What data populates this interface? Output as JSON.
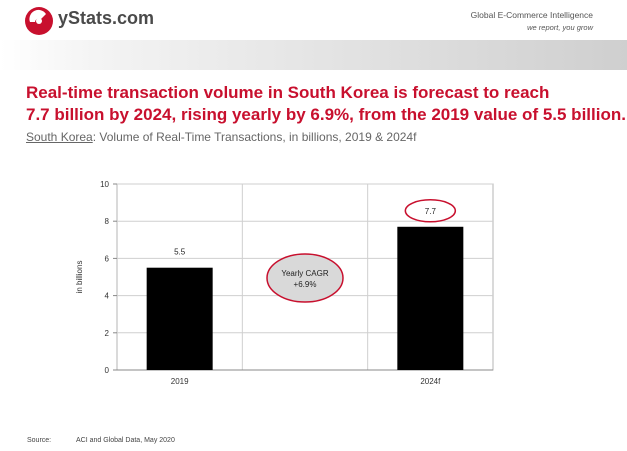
{
  "header": {
    "brand": "yStats.com",
    "tagline_line1": "Global E-Commerce Intelligence",
    "tagline_line2": "we report, you grow"
  },
  "headline": {
    "line1": "Real-time transaction volume in South Korea is forecast to reach",
    "line2": "7.7 billion by 2024, rising yearly by 6.9%, from the 2019 value of 5.5 billion."
  },
  "subtitle": {
    "country": "South Korea",
    "rest": ": Volume of Real-Time Transactions, in billions, 2019 & 2024f"
  },
  "chart_data": {
    "type": "bar",
    "categories": [
      "2019",
      "2024f"
    ],
    "values": [
      5.5,
      7.7
    ],
    "data_labels": [
      "5.5",
      "7.7"
    ],
    "ylabel": "in billions",
    "ylim": [
      0,
      10
    ],
    "yticks": [
      0,
      2,
      4,
      6,
      8,
      10
    ],
    "grid": true,
    "bar_color": "#000000",
    "highlight_color": "#c8102e",
    "annotation": {
      "line1": "Yearly CAGR",
      "line2": "+6.9%"
    }
  },
  "footer": {
    "source_label": "Source:",
    "source_text": "ACI and Global Data, May 2020"
  },
  "colors": {
    "accent": "#c8102e",
    "text_gray": "#666666"
  }
}
